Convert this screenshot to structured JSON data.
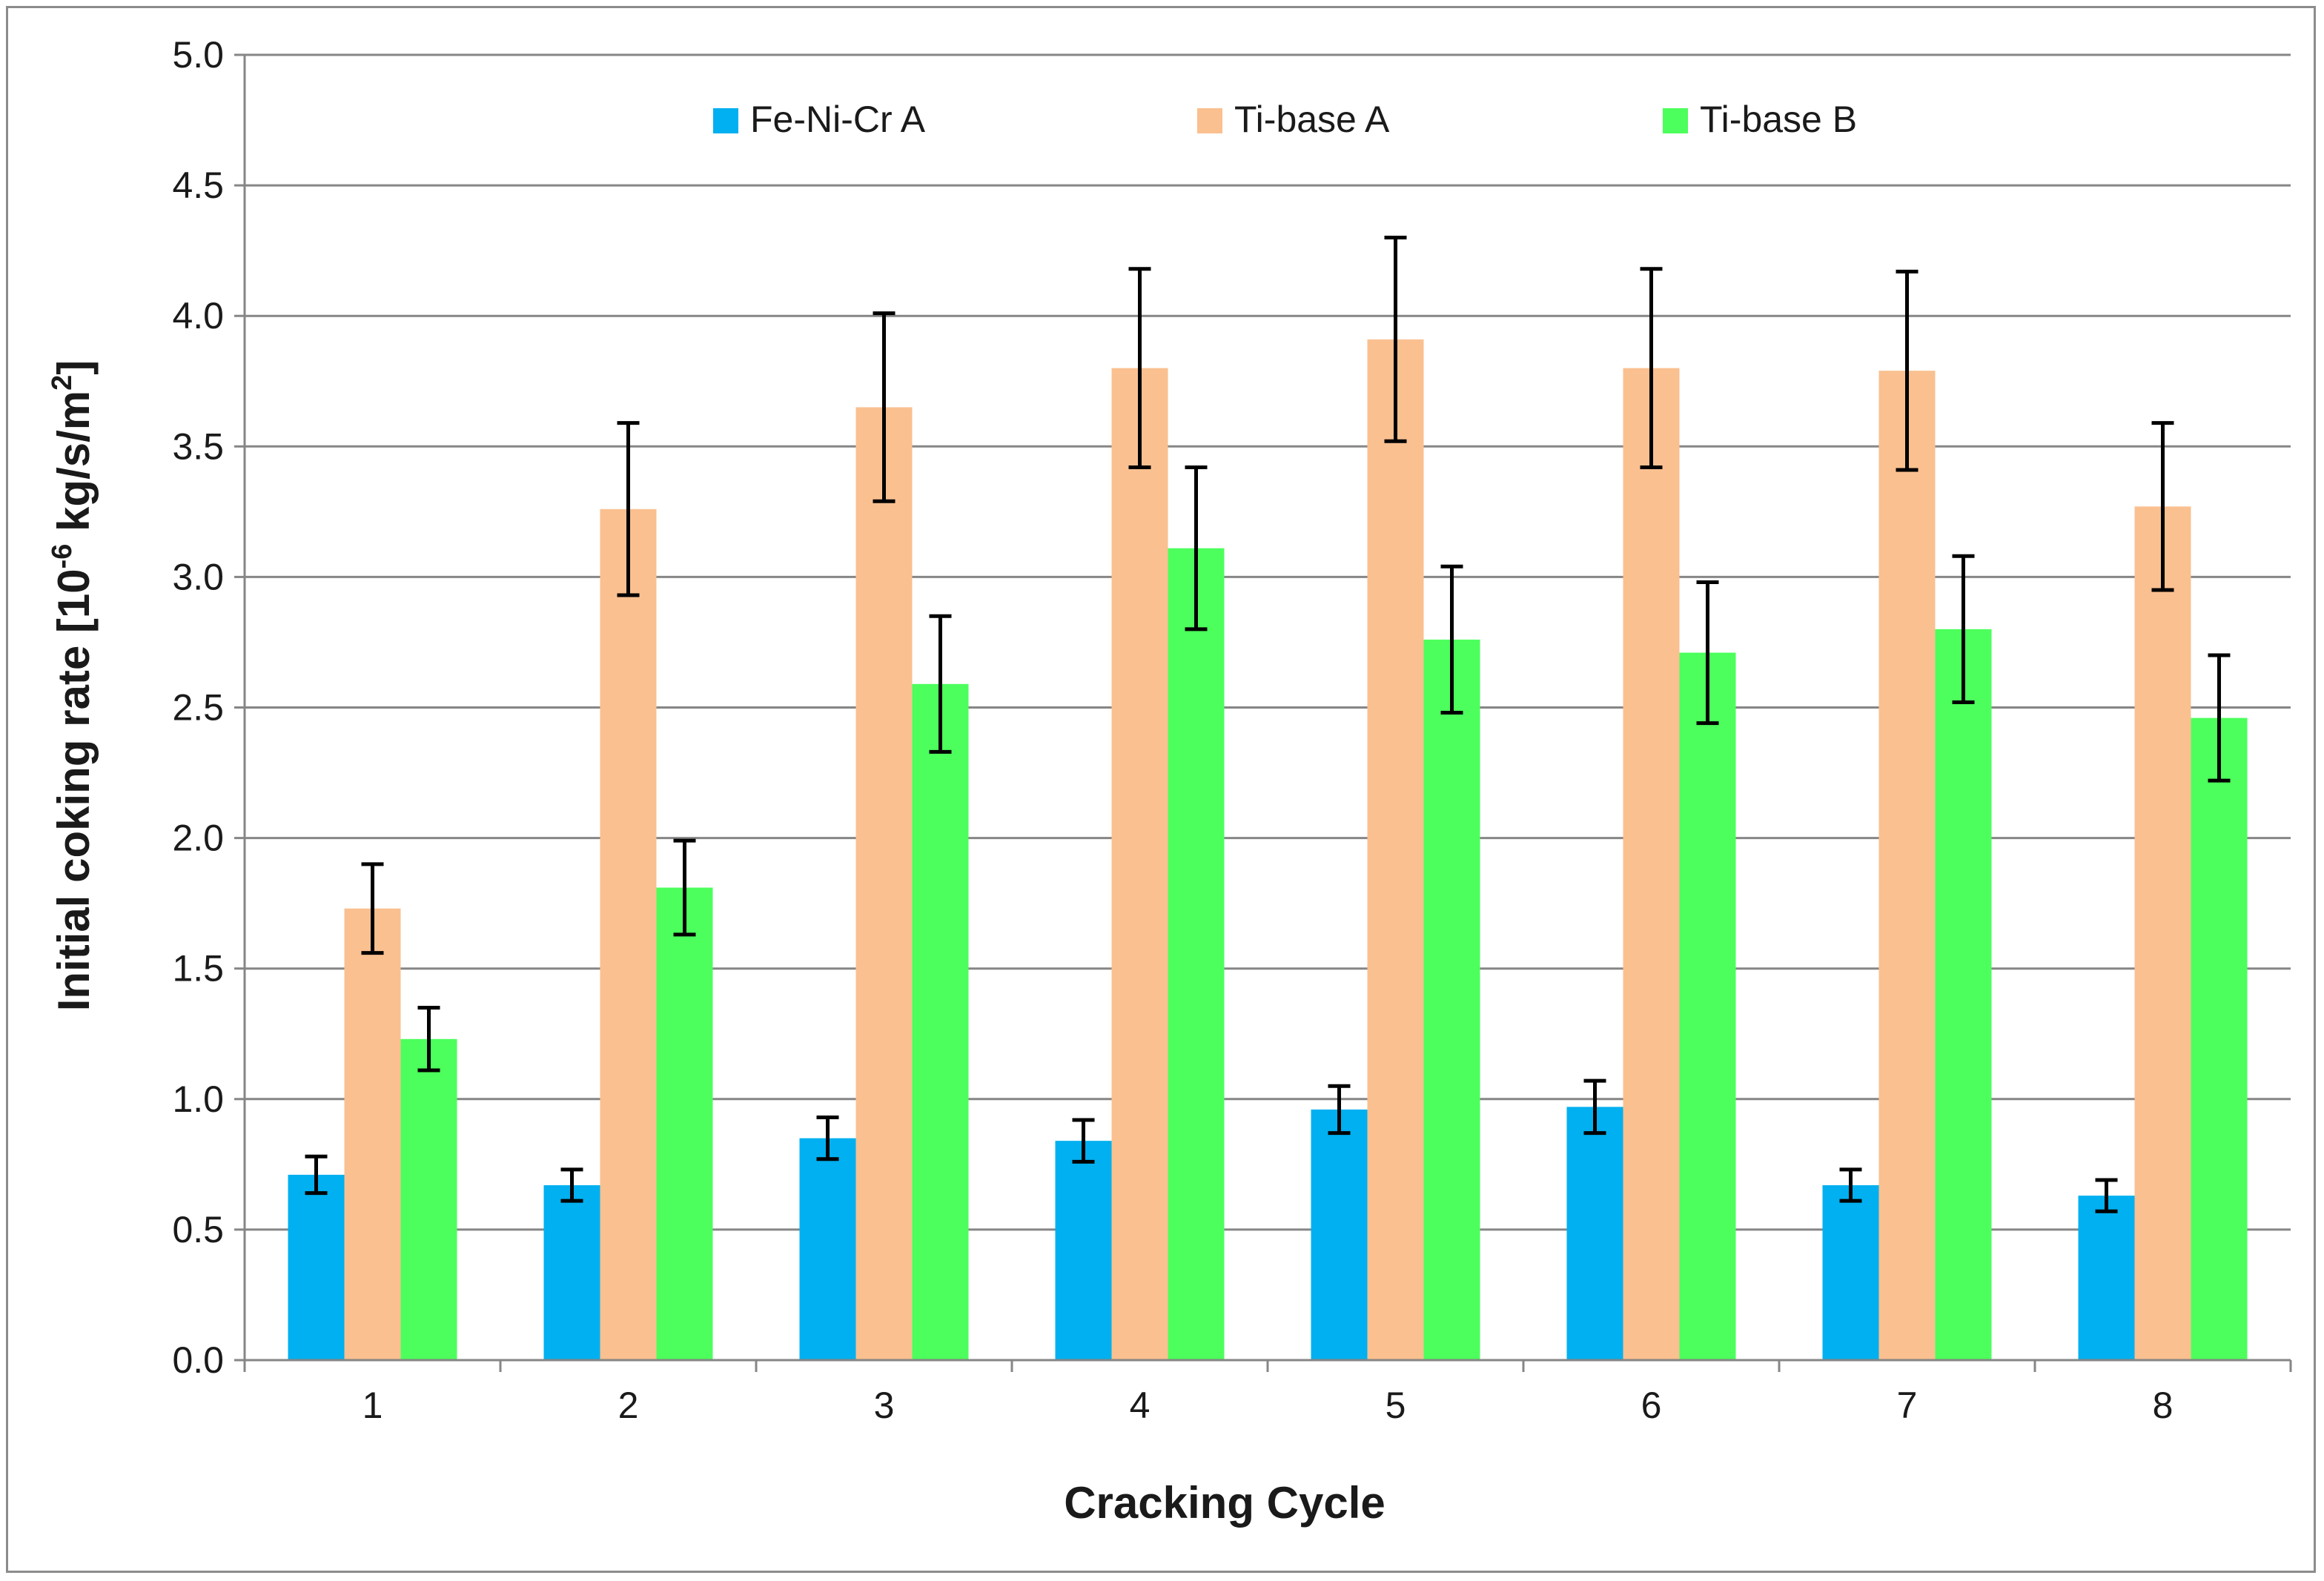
{
  "chart_data": {
    "type": "bar",
    "title": "",
    "xlabel": "Cracking Cycle",
    "ylabel": {
      "prefix": "Initial coking rate [10",
      "exp1": "-6",
      "middle": " kg/s/m",
      "exp2": "2",
      "suffix": "]"
    },
    "ylim": [
      0,
      5
    ],
    "yticks": [
      "0.0",
      "0.5",
      "1.0",
      "1.5",
      "2.0",
      "2.5",
      "3.0",
      "3.5",
      "4.0",
      "4.5",
      "5.0"
    ],
    "grid": true,
    "legend_position": "top",
    "categories": [
      "1",
      "2",
      "3",
      "4",
      "5",
      "6",
      "7",
      "8"
    ],
    "series": [
      {
        "name": "Fe-Ni-Cr A",
        "color": "#00b0f0",
        "values": [
          0.71,
          0.67,
          0.85,
          0.84,
          0.96,
          0.97,
          0.67,
          0.63
        ],
        "errors": [
          0.07,
          0.06,
          0.08,
          0.08,
          0.09,
          0.1,
          0.06,
          0.06
        ]
      },
      {
        "name": "Ti-base A",
        "color": "#fac090",
        "values": [
          1.73,
          3.26,
          3.65,
          3.8,
          3.91,
          3.8,
          3.79,
          3.27
        ],
        "errors": [
          0.17,
          0.33,
          0.36,
          0.38,
          0.39,
          0.38,
          0.38,
          0.32
        ]
      },
      {
        "name": "Ti-base B",
        "color": "#4cff5c",
        "values": [
          1.23,
          1.81,
          2.59,
          3.11,
          2.76,
          2.71,
          2.8,
          2.46
        ],
        "errors": [
          0.12,
          0.18,
          0.26,
          0.31,
          0.28,
          0.27,
          0.28,
          0.24
        ]
      }
    ]
  }
}
